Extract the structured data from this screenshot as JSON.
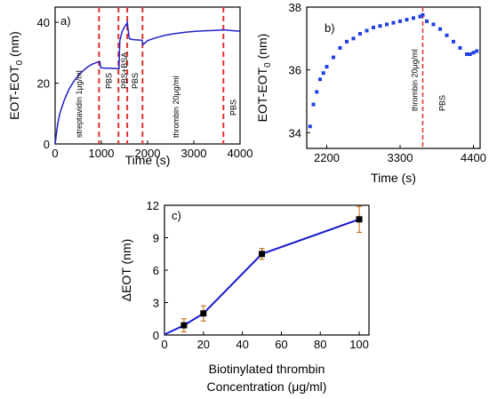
{
  "chart_data": [
    {
      "type": "line",
      "panel_label": "a)",
      "xlabel": "Time (s)",
      "ylabel_main": "EOT-EOT",
      "ylabel_sub": "0",
      "ylabel_unit": " (nm)",
      "xlim": [
        0,
        4000
      ],
      "ylim": [
        0,
        45
      ],
      "xticks": [
        0,
        1000,
        2000,
        3000,
        4000
      ],
      "yticks": [
        0,
        20,
        40
      ],
      "series": [
        {
          "color": "#2020c8",
          "x": [
            0,
            50,
            100,
            200,
            300,
            400,
            500,
            600,
            700,
            800,
            900,
            970,
            980,
            1000,
            1100,
            1200,
            1300,
            1380,
            1400,
            1450,
            1500,
            1540,
            1560,
            1600,
            1620,
            1700,
            1800,
            1880,
            1900,
            1950,
            2000,
            2200,
            2400,
            2600,
            2800,
            3000,
            3200,
            3400,
            3600,
            3700,
            3800,
            3900,
            4000
          ],
          "y": [
            0,
            6,
            10,
            14.5,
            18,
            20.5,
            22.5,
            24,
            25.3,
            26.2,
            26.8,
            27,
            25.2,
            25,
            24.9,
            24.9,
            24.8,
            24.8,
            34,
            37,
            38.5,
            39.3,
            40,
            35,
            34.5,
            34.3,
            34.2,
            34.1,
            32.7,
            33.3,
            34,
            35,
            35.8,
            36.3,
            36.7,
            37,
            37.2,
            37.3,
            37.5,
            37.5,
            37.3,
            37.2,
            37.1
          ]
        }
      ],
      "events": [
        {
          "x": 950,
          "label": "PBS"
        },
        {
          "x": 1370,
          "label": "PBS+BSA"
        },
        {
          "x": 1560,
          "label": "PBS"
        },
        {
          "x": 1890,
          "label": "thrombin 20μg/ml"
        },
        {
          "x": 3640,
          "label": "PBS"
        }
      ],
      "inline_labels": [
        {
          "x": 350,
          "label": "streptavidin 1μg/ml"
        }
      ]
    },
    {
      "type": "scatter",
      "panel_label": "b)",
      "xlabel": "Time (s)",
      "ylabel_main": "EOT-EOT",
      "ylabel_sub": "0",
      "ylabel_unit": " (nm)",
      "xlim": [
        1900,
        4500
      ],
      "ylim": [
        33.5,
        38
      ],
      "xticks": [
        2200,
        3300,
        4400
      ],
      "yticks": [
        34,
        36,
        38
      ],
      "event": {
        "x": 3640,
        "label": "thrombin 20μg/ml"
      },
      "after_label": "PBS",
      "series": [
        {
          "color": "#2040e0",
          "x": [
            1950,
            2000,
            2050,
            2100,
            2150,
            2200,
            2300,
            2400,
            2500,
            2600,
            2700,
            2800,
            2900,
            3000,
            3100,
            3200,
            3300,
            3400,
            3500,
            3600,
            3640,
            3700,
            3800,
            3900,
            4000,
            4100,
            4200,
            4300,
            4350,
            4400,
            4450
          ],
          "y": [
            34.2,
            34.9,
            35.3,
            35.7,
            35.9,
            36.1,
            36.4,
            36.7,
            36.9,
            37.0,
            37.15,
            37.25,
            37.35,
            37.4,
            37.45,
            37.5,
            37.55,
            37.6,
            37.65,
            37.7,
            37.75,
            37.55,
            37.45,
            37.3,
            37.1,
            36.9,
            36.7,
            36.5,
            36.5,
            36.55,
            36.6
          ]
        }
      ]
    },
    {
      "type": "line",
      "panel_label": "c)",
      "xlabel": "Biotinylated thrombin",
      "xlabel2": "Concentration (μg/ml)",
      "ylabel": "ΔEOT (nm)",
      "xlim": [
        0,
        105
      ],
      "ylim": [
        0,
        12
      ],
      "xticks": [
        0,
        20,
        40,
        60,
        80,
        100
      ],
      "yticks": [
        0,
        3,
        6,
        9,
        12
      ],
      "series": [
        {
          "color": "#1a1ad0",
          "x": [
            0,
            10,
            20,
            50,
            100
          ],
          "y": [
            0.05,
            0.9,
            2.0,
            7.5,
            10.7
          ],
          "err": [
            0,
            0.6,
            0.7,
            0.5,
            1.2
          ],
          "marker_x": [
            10,
            20,
            50,
            100
          ]
        }
      ]
    }
  ]
}
